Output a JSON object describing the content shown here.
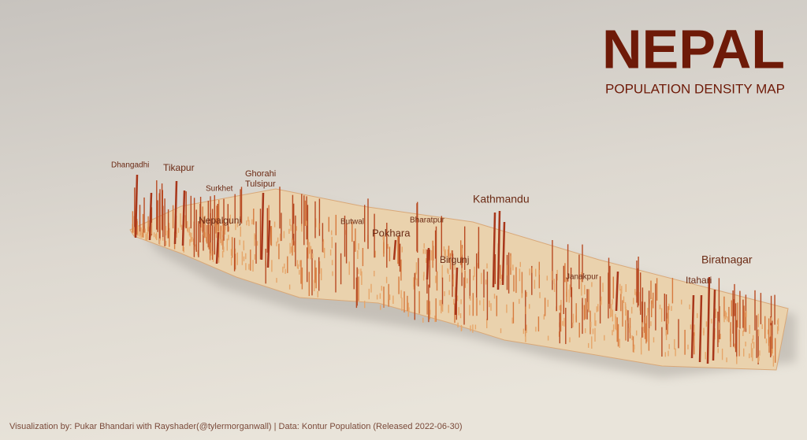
{
  "header": {
    "title": "NEPAL",
    "subtitle": "POPULATION DENSITY MAP"
  },
  "cities": [
    "Dhangadhi",
    "Tikapur",
    "Surkhet",
    "Ghorahi",
    "Tulsipur",
    "Nepalgunj",
    "Butwal",
    "Bharatpur",
    "Pokhara",
    "Kathmandu",
    "Birgunj",
    "Janakpur",
    "Itahari",
    "Biratnagar"
  ],
  "footer": {
    "credit": "Visualization by: Pukar Bhandari with Rayshader(@tylermorganwall) | Data: Kontur Population (Released 2022-06-30)"
  }
}
